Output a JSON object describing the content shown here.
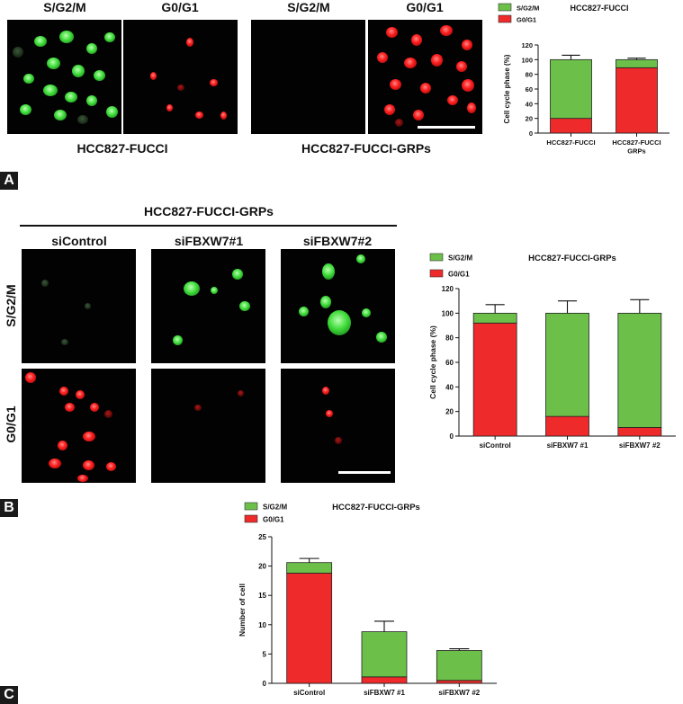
{
  "panel_A": {
    "tag": "A",
    "col_headers": [
      "S/G2/M",
      "G0/G1",
      "S/G2/M",
      "G0/G1"
    ],
    "captions": [
      "HCC827-FUCCI",
      "HCC827-FUCCI-GRPs"
    ]
  },
  "panel_B": {
    "tag": "B",
    "group_title": "HCC827-FUCCI-GRPs",
    "col_headers": [
      "siControl",
      "siFBXW7#1",
      "siFBXW7#2"
    ],
    "row_labels": [
      "S/G2/M",
      "G0/G1"
    ]
  },
  "panel_C": {
    "tag": "C"
  },
  "colors": {
    "green": "#6cc04a",
    "red": "#ee2a2a"
  },
  "chart_data": [
    {
      "type": "bar",
      "stacked": true,
      "title": "HCC827-FUCCI",
      "ylabel": "Cell cycle phase (%)",
      "xlabel": "",
      "ylim": [
        0,
        120
      ],
      "yticks": [
        "0",
        "20",
        "40",
        "60",
        "80",
        "100",
        "120"
      ],
      "ytick_values": [
        0,
        20,
        40,
        60,
        80,
        100,
        120
      ],
      "categories": [
        "HCC827-FUCCI",
        "HCC827-FUCCI GRPs"
      ],
      "category_lines": [
        [
          "HCC827-FUCCI"
        ],
        [
          "HCC827-FUCCI",
          "GRPs"
        ]
      ],
      "legend_position": "top-left",
      "series": [
        {
          "name": "G0/G1",
          "color": "#ee2a2a",
          "values": [
            20,
            89
          ],
          "err": [
            6,
            2
          ]
        },
        {
          "name": "S/G2/M",
          "color": "#6cc04a",
          "values": [
            80,
            11
          ],
          "err": [
            6,
            2
          ]
        }
      ]
    },
    {
      "type": "bar",
      "stacked": true,
      "title": "HCC827-FUCCI-GRPs",
      "ylabel": "Cell cycle phase (%)",
      "xlabel": "",
      "ylim": [
        0,
        120
      ],
      "yticks": [
        "0",
        "20",
        "40",
        "60",
        "80",
        "100",
        "120"
      ],
      "ytick_values": [
        0,
        20,
        40,
        60,
        80,
        100,
        120
      ],
      "categories": [
        "siControl",
        "siFBXW7 #1",
        "siFBXW7 #2"
      ],
      "category_lines": [
        [
          "siControl"
        ],
        [
          "siFBXW7 #1"
        ],
        [
          "siFBXW7 #2"
        ]
      ],
      "legend_position": "top-left",
      "series": [
        {
          "name": "G0/G1",
          "color": "#ee2a2a",
          "values": [
            92,
            16,
            7
          ],
          "err": [
            0,
            10,
            11
          ]
        },
        {
          "name": "S/G2/M",
          "color": "#6cc04a",
          "values": [
            8,
            84,
            93
          ],
          "err": [
            7,
            10,
            11
          ]
        }
      ]
    },
    {
      "type": "bar",
      "stacked": true,
      "title": "HCC827-FUCCI-GRPs",
      "ylabel": "Number of cell",
      "xlabel": "",
      "ylim": [
        0,
        25
      ],
      "yticks": [
        "0",
        "5",
        "10",
        "15",
        "20",
        "25"
      ],
      "ytick_values": [
        0,
        5,
        10,
        15,
        20,
        25
      ],
      "categories": [
        "siControl",
        "siFBXW7 #1",
        "siFBXW7 #2"
      ],
      "category_lines": [
        [
          "siControl"
        ],
        [
          "siFBXW7 #1"
        ],
        [
          "siFBXW7 #2"
        ]
      ],
      "legend_position": "top-left",
      "series": [
        {
          "name": "G0/G1",
          "color": "#ee2a2a",
          "values": [
            18.8,
            1.1,
            0.5
          ],
          "err": [
            0.4,
            0.3,
            0.3
          ]
        },
        {
          "name": "S/G2/M",
          "color": "#6cc04a",
          "values": [
            1.8,
            7.7,
            5.1
          ],
          "err": [
            0.7,
            1.8,
            0.3
          ]
        }
      ]
    }
  ]
}
